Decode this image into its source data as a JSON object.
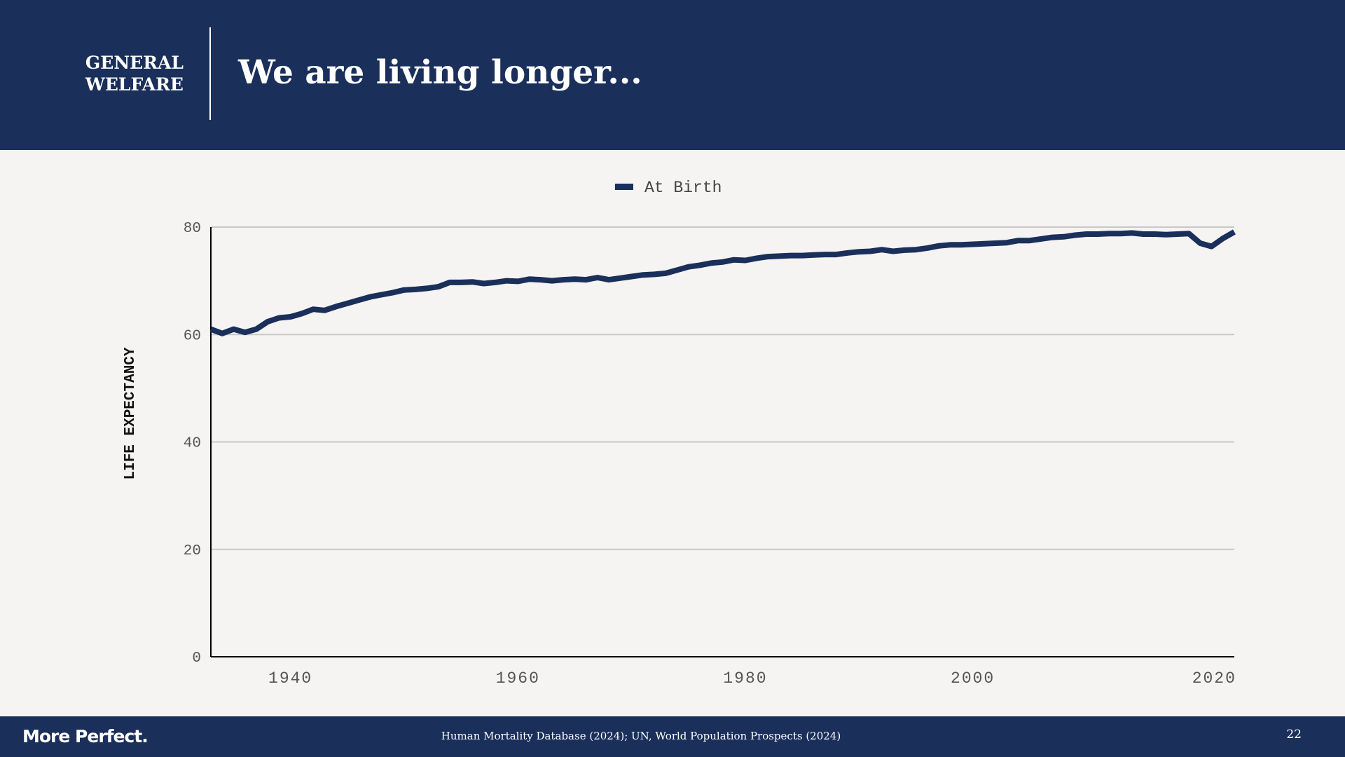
{
  "header": {
    "section": [
      "GENERAL",
      "WELFARE"
    ],
    "title": "We are living longer..."
  },
  "footer": {
    "logo": "More Perfect.",
    "source": "Human Mortality Database (2024); UN, World Population Prospects (2024)",
    "page": "22"
  },
  "colors": {
    "navy": "#1a2f5a",
    "background": "#f5f4f2",
    "grid": "#c8c8c8"
  },
  "chart_data": {
    "type": "line",
    "title": "",
    "xlabel": "",
    "ylabel": "LIFE EXPECTANCY",
    "xlim": [
      1933,
      2023
    ],
    "ylim": [
      0,
      80
    ],
    "xticks": [
      1940,
      1960,
      1980,
      2000,
      2020
    ],
    "yticks": [
      0,
      20,
      40,
      60,
      80
    ],
    "grid": "horizontal",
    "legend": "top-center",
    "series": [
      {
        "name": "At Birth",
        "color": "#1a2f5a",
        "x": [
          1933,
          1934,
          1935,
          1936,
          1937,
          1938,
          1939,
          1940,
          1941,
          1942,
          1943,
          1944,
          1945,
          1946,
          1947,
          1948,
          1949,
          1950,
          1951,
          1952,
          1953,
          1954,
          1955,
          1956,
          1957,
          1958,
          1959,
          1960,
          1961,
          1962,
          1963,
          1964,
          1965,
          1966,
          1967,
          1968,
          1969,
          1970,
          1971,
          1972,
          1973,
          1974,
          1975,
          1976,
          1977,
          1978,
          1979,
          1980,
          1981,
          1982,
          1983,
          1984,
          1985,
          1986,
          1987,
          1988,
          1989,
          1990,
          1991,
          1992,
          1993,
          1994,
          1995,
          1996,
          1997,
          1998,
          1999,
          2000,
          2001,
          2002,
          2003,
          2004,
          2005,
          2006,
          2007,
          2008,
          2009,
          2010,
          2011,
          2012,
          2013,
          2014,
          2015,
          2016,
          2017,
          2018,
          2019,
          2020,
          2021,
          2022,
          2023
        ],
        "values": [
          61.0,
          60.2,
          61.0,
          60.4,
          61.0,
          62.4,
          63.1,
          63.3,
          63.9,
          64.7,
          64.5,
          65.2,
          65.8,
          66.4,
          67.0,
          67.4,
          67.8,
          68.3,
          68.4,
          68.6,
          68.9,
          69.7,
          69.7,
          69.8,
          69.5,
          69.7,
          70.0,
          69.9,
          70.3,
          70.2,
          70.0,
          70.2,
          70.3,
          70.2,
          70.6,
          70.2,
          70.5,
          70.8,
          71.1,
          71.2,
          71.4,
          72.0,
          72.6,
          72.9,
          73.3,
          73.5,
          73.9,
          73.8,
          74.2,
          74.5,
          74.6,
          74.7,
          74.7,
          74.8,
          74.9,
          74.9,
          75.2,
          75.4,
          75.5,
          75.8,
          75.5,
          75.7,
          75.8,
          76.1,
          76.5,
          76.7,
          76.7,
          76.8,
          76.9,
          77.0,
          77.1,
          77.5,
          77.5,
          77.8,
          78.1,
          78.2,
          78.5,
          78.7,
          78.7,
          78.8,
          78.8,
          78.9,
          78.7,
          78.7,
          78.6,
          78.7,
          78.8,
          77.0,
          76.4,
          77.9,
          79.1
        ]
      }
    ]
  }
}
